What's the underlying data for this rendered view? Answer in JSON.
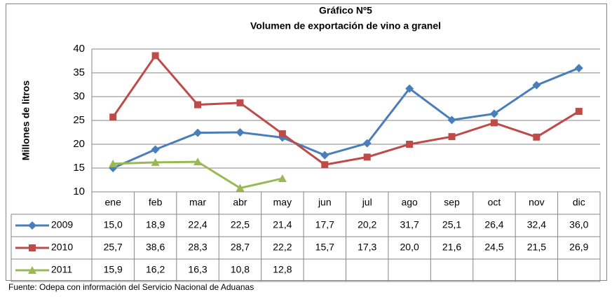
{
  "chart_data": {
    "type": "line",
    "title": "Gráfico Nº5",
    "subtitle": "Volumen de exportación de vino a granel",
    "y_label": "Millones de litros",
    "source": "Fuente: Odepa con información del Servicio Nacional de Aduanas",
    "categories": [
      "ene",
      "feb",
      "mar",
      "abr",
      "may",
      "jun",
      "jul",
      "ago",
      "sep",
      "oct",
      "nov",
      "dic"
    ],
    "series": [
      {
        "name": "2009",
        "color": "#4a7ebb",
        "marker": "diamond",
        "values": [
          15.0,
          18.9,
          22.4,
          22.5,
          21.4,
          17.7,
          20.2,
          31.7,
          25.1,
          26.4,
          32.4,
          36.0
        ],
        "value_labels": [
          "15,0",
          "18,9",
          "22,4",
          "22,5",
          "21,4",
          "17,7",
          "20,2",
          "31,7",
          "25,1",
          "26,4",
          "32,4",
          "36,0"
        ]
      },
      {
        "name": "2010",
        "color": "#be4b48",
        "marker": "square",
        "values": [
          25.7,
          38.6,
          28.3,
          28.7,
          22.2,
          15.7,
          17.3,
          20.0,
          21.6,
          24.5,
          21.5,
          26.9
        ],
        "value_labels": [
          "25,7",
          "38,6",
          "28,3",
          "28,7",
          "22,2",
          "15,7",
          "17,3",
          "20,0",
          "21,6",
          "24,5",
          "21,5",
          "26,9"
        ]
      },
      {
        "name": "2011",
        "color": "#98b954",
        "marker": "triangle",
        "values": [
          15.9,
          16.2,
          16.3,
          10.8,
          12.8,
          null,
          null,
          null,
          null,
          null,
          null,
          null
        ],
        "value_labels": [
          "15,9",
          "16,2",
          "16,3",
          "10,8",
          "12,8",
          null,
          null,
          null,
          null,
          null,
          null,
          null
        ]
      }
    ],
    "ylim": [
      10,
      40
    ],
    "yticks": [
      10,
      15,
      20,
      25,
      30,
      35,
      40
    ],
    "grid": true
  }
}
